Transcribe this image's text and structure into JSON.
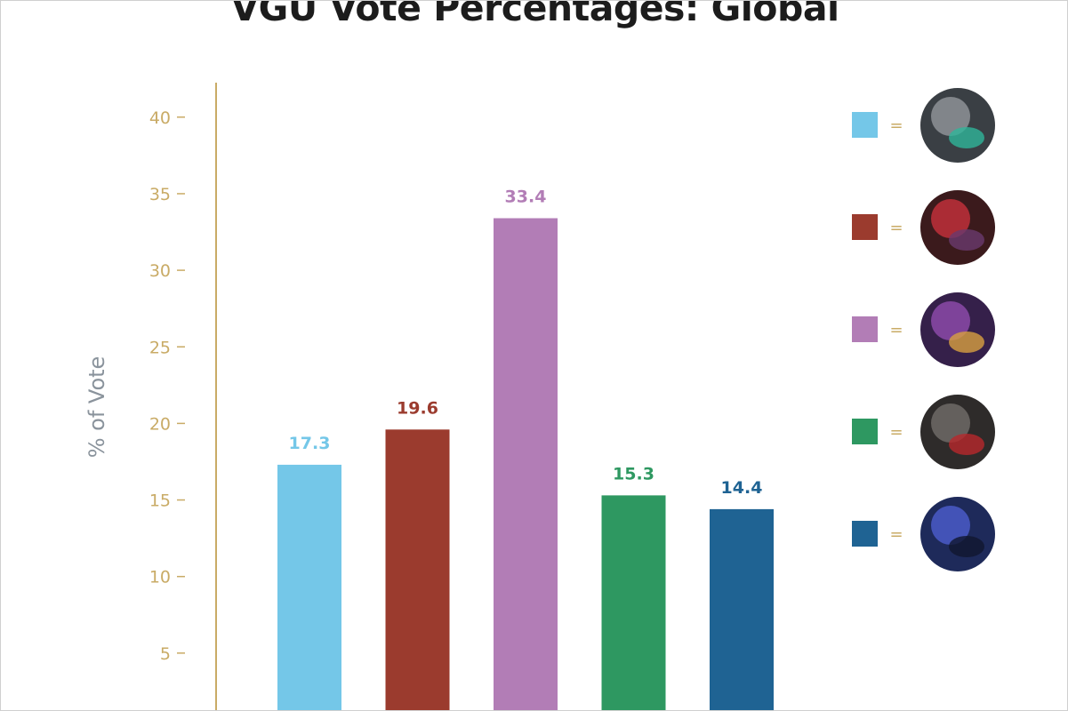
{
  "chart_data": {
    "type": "bar",
    "title": "VGU Vote Percentages: Global",
    "ylabel": "% of Vote",
    "xlabel": "",
    "ylim": [
      0,
      42
    ],
    "yticks": [
      5,
      10,
      15,
      20,
      25,
      30,
      35,
      40
    ],
    "values": [
      17.3,
      19.6,
      33.4,
      15.3,
      14.4
    ],
    "value_labels": [
      "17.3",
      "19.6",
      "33.4",
      "15.3",
      "14.4"
    ],
    "colors": [
      "#74c7e8",
      "#9b3b2e",
      "#b27db6",
      "#2e9861",
      "#1f6393"
    ],
    "grid": false,
    "legend_position": "right",
    "legend": [
      {
        "color": "#74c7e8",
        "separator": "=",
        "icon": "champion-portrait-helmeted-warrior-icon"
      },
      {
        "color": "#9b3b2e",
        "separator": "=",
        "icon": "champion-portrait-red-horned-icon"
      },
      {
        "color": "#b27db6",
        "separator": "=",
        "icon": "champion-portrait-purple-beast-icon"
      },
      {
        "color": "#2e9861",
        "separator": "=",
        "icon": "champion-portrait-dark-armored-icon"
      },
      {
        "color": "#1f6393",
        "separator": "=",
        "icon": "champion-portrait-blue-armored-icon"
      }
    ]
  },
  "style": {
    "axis_color": "#c9ab66",
    "tick_label_color": "#c9ab66",
    "ylabel_color": "#8a939c"
  }
}
